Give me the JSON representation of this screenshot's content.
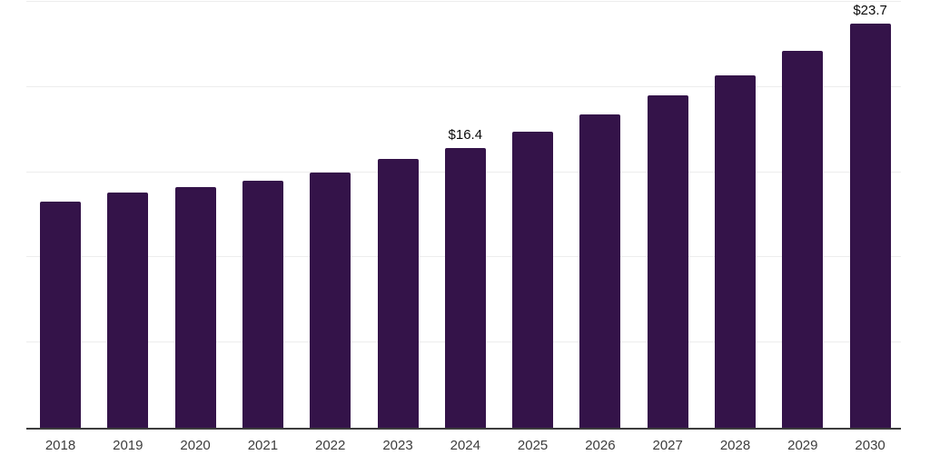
{
  "chart_data": {
    "type": "bar",
    "title": "",
    "xlabel": "",
    "ylabel": "",
    "categories": [
      "2018",
      "2019",
      "2020",
      "2021",
      "2022",
      "2023",
      "2024",
      "2025",
      "2026",
      "2027",
      "2028",
      "2029",
      "2030"
    ],
    "values": [
      13.3,
      13.8,
      14.1,
      14.5,
      15.0,
      15.8,
      16.4,
      17.4,
      18.4,
      19.5,
      20.7,
      22.1,
      23.7
    ],
    "value_prefix": "$",
    "annotations": [
      {
        "category": "2024",
        "value": 16.4,
        "label": "$16.4"
      },
      {
        "category": "2030",
        "value": 23.7,
        "label": "$23.7"
      }
    ],
    "ylim": [
      0,
      25
    ],
    "gridline_step": 5,
    "grid": "horizontal-only",
    "y_axis_labels_visible": false,
    "legend": "none",
    "colors": {
      "bar": "#341349",
      "gridline": "#ededed",
      "axis_line": "#3d3d3d",
      "tick_label": "#3d3d3d",
      "value_label": "#0a0a0a",
      "background": "#ffffff"
    }
  }
}
